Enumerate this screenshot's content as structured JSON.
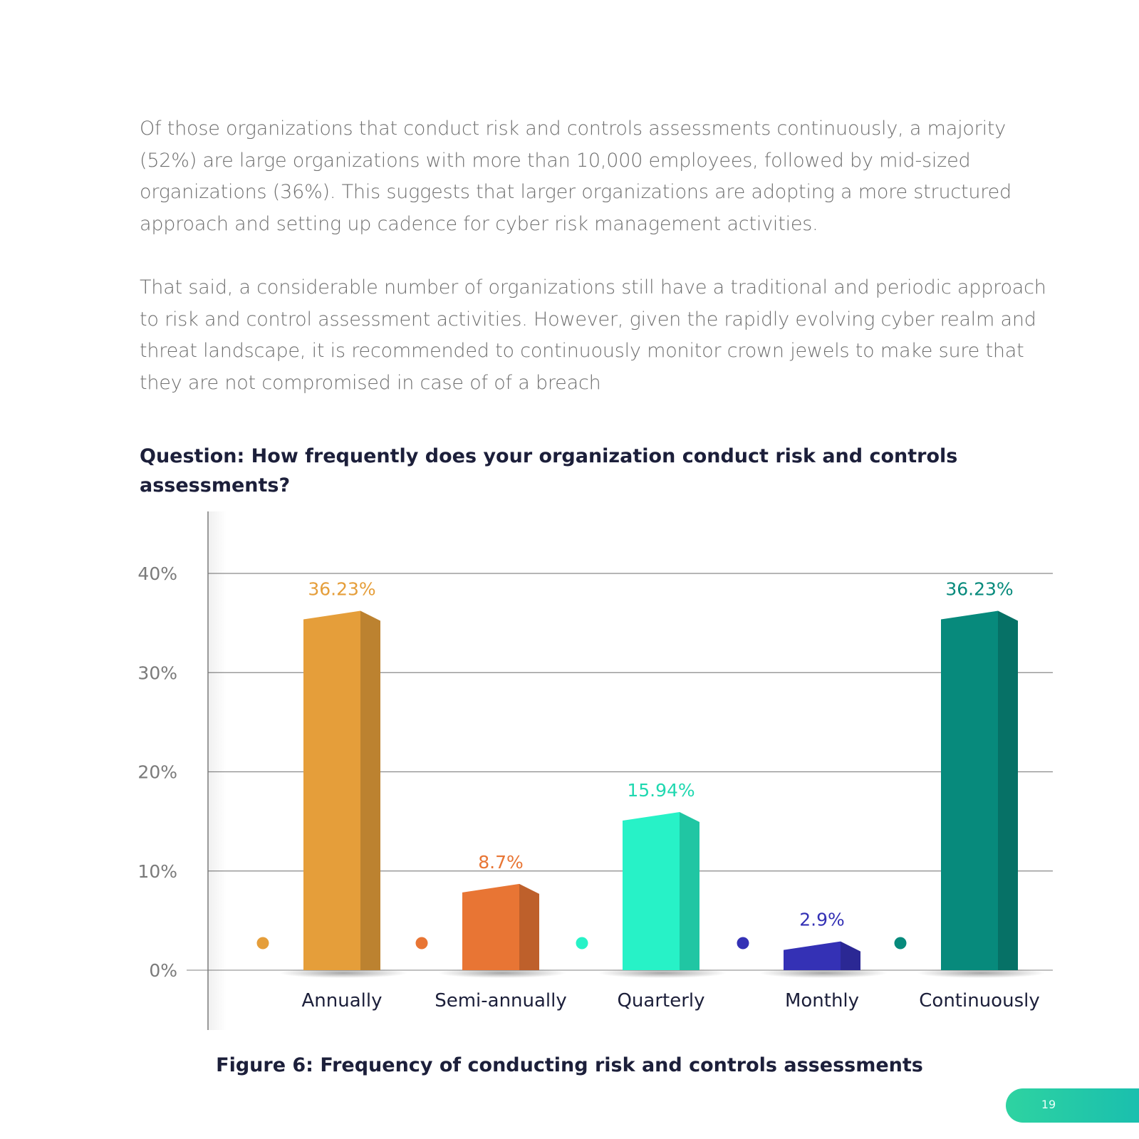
{
  "body": {
    "paragraph_1": "Of those organizations that conduct risk and controls assessments continuously, a majority (52%) are large organizations with more than 10,000 employees, followed by mid-sized organizations (36%). This suggests that larger organizations are adopting a more structured approach and setting up cadence for cyber risk management activities.",
    "paragraph_2": "That said, a considerable number of organizations still have a traditional and periodic approach to risk and control assessment activities. However, given the rapidly evolving cyber realm and threat landscape, it is recommended to continuously monitor crown jewels to make sure that they are not compromised in case of of a breach"
  },
  "question": "Question: How frequently does your organization conduct risk and controls assessments?",
  "caption": "Figure 6: Frequency of conducting risk and controls assessments",
  "page_number": "19",
  "chart_data": {
    "type": "bar",
    "categories": [
      "Annually",
      "Semi-annually",
      "Quarterly",
      "Monthly",
      "Continuously"
    ],
    "values": [
      36.23,
      8.7,
      15.94,
      2.9,
      36.23
    ],
    "value_labels": [
      "36.23%",
      "8.7%",
      "15.94%",
      "2.9%",
      "36.23%"
    ],
    "colors": [
      "#E59E3A",
      "#E87534",
      "#27F2C7",
      "#3431B5",
      "#078A7C"
    ],
    "ylim": [
      0,
      40
    ],
    "yticks": [
      0,
      10,
      20,
      30,
      40
    ],
    "ytick_labels": [
      "0%",
      "10%",
      "20%",
      "30%",
      "40%"
    ],
    "grid": true,
    "legend": "markers to the left of each bar"
  }
}
